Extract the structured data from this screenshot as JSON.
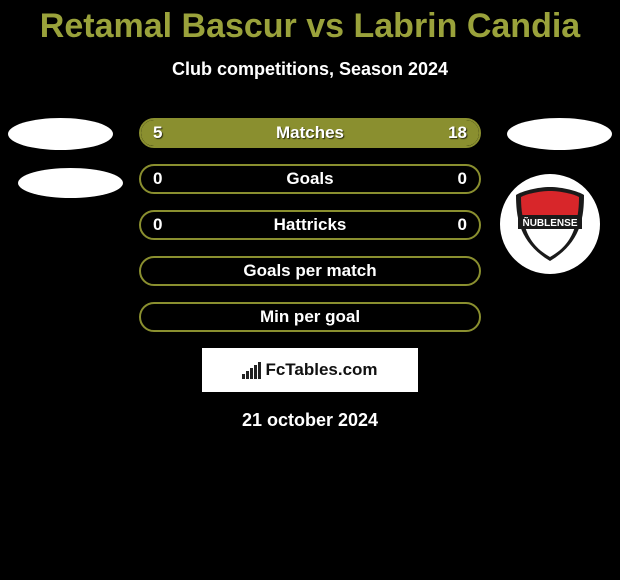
{
  "title": {
    "text": "Retamal Bascur vs Labrin Candia",
    "color": "#9aa23b",
    "fontsize": 34
  },
  "subtitle": {
    "text": "Club competitions, Season 2024",
    "color": "#ffffff",
    "fontsize": 18
  },
  "bar_style": {
    "border_color": "#8a8f2f",
    "fill_color": "#8a8f2f",
    "label_fontsize": 17,
    "value_fontsize": 17,
    "text_color": "#ffffff"
  },
  "bars": [
    {
      "label": "Matches",
      "left": "5",
      "right": "18",
      "left_fill_pct": 22,
      "right_fill_pct": 78
    },
    {
      "label": "Goals",
      "left": "0",
      "right": "0",
      "left_fill_pct": 0,
      "right_fill_pct": 0
    },
    {
      "label": "Hattricks",
      "left": "0",
      "right": "0",
      "left_fill_pct": 0,
      "right_fill_pct": 0
    },
    {
      "label": "Goals per match",
      "left": "",
      "right": "",
      "left_fill_pct": 0,
      "right_fill_pct": 0
    },
    {
      "label": "Min per goal",
      "left": "",
      "right": "",
      "left_fill_pct": 0,
      "right_fill_pct": 0
    }
  ],
  "badge": {
    "shield_outer": "#1a1a1a",
    "shield_top": "#d8262a",
    "shield_bottom": "#ffffff",
    "band_text": "ÑUBLENSE",
    "band_bg": "#1a1a1a",
    "band_text_color": "#ffffff"
  },
  "footer": {
    "brand": "FcTables.com",
    "brand_color": "#111111"
  },
  "date": {
    "text": "21 october 2024",
    "color": "#ffffff",
    "fontsize": 18
  },
  "background_color": "#000000"
}
